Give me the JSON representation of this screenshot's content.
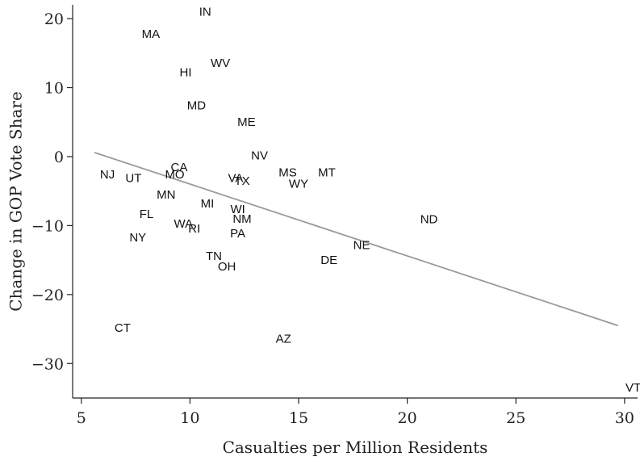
{
  "chart_data": {
    "type": "scatter",
    "xlabel": "Casualties per Million Residents",
    "ylabel": "Change in GOP Vote Share",
    "xlim": [
      4.6,
      30.6
    ],
    "ylim": [
      -35,
      22
    ],
    "xticks": [
      5,
      10,
      15,
      20,
      25,
      30
    ],
    "yticks": [
      20,
      10,
      0,
      -10,
      -20,
      -30
    ],
    "grid": false,
    "points": [
      {
        "label": "IN",
        "x": 10.7,
        "y": 21.0
      },
      {
        "label": "MA",
        "x": 8.2,
        "y": 17.8
      },
      {
        "label": "WV",
        "x": 11.4,
        "y": 13.6
      },
      {
        "label": "HI",
        "x": 9.8,
        "y": 12.2
      },
      {
        "label": "MD",
        "x": 10.3,
        "y": 7.4
      },
      {
        "label": "ME",
        "x": 12.6,
        "y": 5.0
      },
      {
        "label": "NV",
        "x": 13.2,
        "y": 0.2
      },
      {
        "label": "CA",
        "x": 9.5,
        "y": -1.5
      },
      {
        "label": "NJ",
        "x": 6.2,
        "y": -2.6
      },
      {
        "label": "MO",
        "x": 9.3,
        "y": -2.6
      },
      {
        "label": "UT",
        "x": 7.4,
        "y": -3.1
      },
      {
        "label": "MS",
        "x": 14.5,
        "y": -2.3
      },
      {
        "label": "MT",
        "x": 16.3,
        "y": -2.3
      },
      {
        "label": "VA",
        "x": 12.1,
        "y": -3.1
      },
      {
        "label": "TX",
        "x": 12.4,
        "y": -3.5
      },
      {
        "label": "WY",
        "x": 15.0,
        "y": -3.9
      },
      {
        "label": "MN",
        "x": 8.9,
        "y": -5.5
      },
      {
        "label": "MI",
        "x": 10.8,
        "y": -6.8
      },
      {
        "label": "FL",
        "x": 8.0,
        "y": -8.3
      },
      {
        "label": "WI",
        "x": 12.2,
        "y": -7.6
      },
      {
        "label": "NM",
        "x": 12.4,
        "y": -9.0
      },
      {
        "label": "ND",
        "x": 21.0,
        "y": -9.1
      },
      {
        "label": "WA",
        "x": 9.7,
        "y": -9.7
      },
      {
        "label": "RI",
        "x": 10.2,
        "y": -10.4
      },
      {
        "label": "PA",
        "x": 12.2,
        "y": -11.1
      },
      {
        "label": "NY",
        "x": 7.6,
        "y": -11.7
      },
      {
        "label": "NE",
        "x": 17.9,
        "y": -12.8
      },
      {
        "label": "TN",
        "x": 11.1,
        "y": -14.4
      },
      {
        "label": "DE",
        "x": 16.4,
        "y": -15.0
      },
      {
        "label": "OH",
        "x": 11.7,
        "y": -15.9
      },
      {
        "label": "CT",
        "x": 6.9,
        "y": -24.8
      },
      {
        "label": "AZ",
        "x": 14.3,
        "y": -26.4
      },
      {
        "label": "VT",
        "x": 30.4,
        "y": -33.5
      }
    ],
    "fit_line": {
      "x": [
        5.6,
        29.7
      ],
      "y": [
        0.6,
        -24.5
      ]
    }
  }
}
